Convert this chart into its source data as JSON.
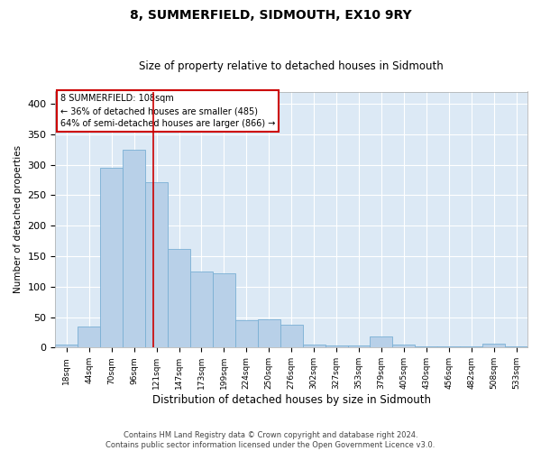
{
  "title": "8, SUMMERFIELD, SIDMOUTH, EX10 9RY",
  "subtitle": "Size of property relative to detached houses in Sidmouth",
  "xlabel": "Distribution of detached houses by size in Sidmouth",
  "ylabel": "Number of detached properties",
  "bar_color": "#b8d0e8",
  "bar_edge_color": "#7aafd4",
  "bg_color": "#dce9f5",
  "grid_color": "#ffffff",
  "categories": [
    "18sqm",
    "44sqm",
    "70sqm",
    "96sqm",
    "121sqm",
    "147sqm",
    "173sqm",
    "199sqm",
    "224sqm",
    "250sqm",
    "276sqm",
    "302sqm",
    "327sqm",
    "353sqm",
    "379sqm",
    "405sqm",
    "430sqm",
    "456sqm",
    "482sqm",
    "508sqm",
    "533sqm"
  ],
  "values": [
    5,
    35,
    295,
    325,
    272,
    162,
    125,
    122,
    45,
    47,
    38,
    5,
    4,
    3,
    18,
    5,
    2,
    2,
    2,
    7,
    2
  ],
  "ylim": [
    0,
    420
  ],
  "yticks": [
    0,
    50,
    100,
    150,
    200,
    250,
    300,
    350,
    400
  ],
  "property_line_x": 3.85,
  "property_line_color": "#cc0000",
  "annotation_text": "8 SUMMERFIELD: 108sqm\n← 36% of detached houses are smaller (485)\n64% of semi-detached houses are larger (866) →",
  "footer_line1": "Contains HM Land Registry data © Crown copyright and database right 2024.",
  "footer_line2": "Contains public sector information licensed under the Open Government Licence v3.0."
}
